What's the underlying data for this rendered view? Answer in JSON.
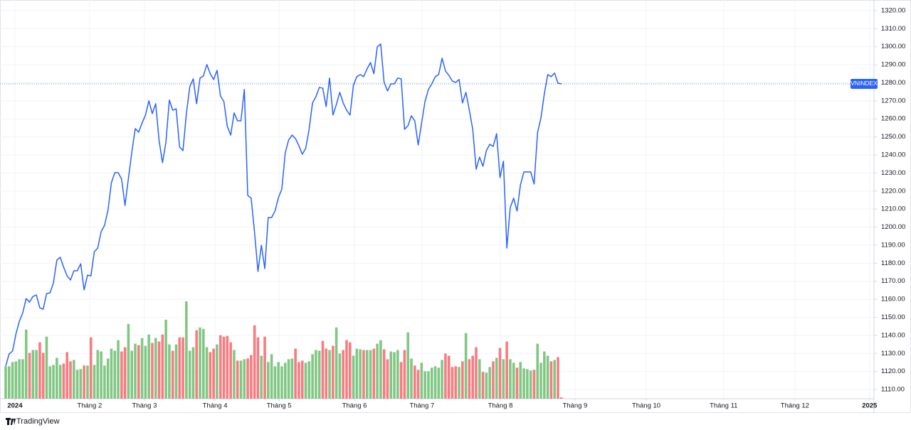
{
  "brand": "TradingView",
  "chart_data": {
    "type": "line",
    "series": [
      {
        "name": "VNINDEX",
        "color": "#2962ff",
        "values": [
          1123,
          1129.7,
          1131.3,
          1140.7,
          1147.8,
          1152.5,
          1160.4,
          1158.5,
          1161.6,
          1162.4,
          1155.3,
          1154.5,
          1163.2,
          1163.6,
          1169.1,
          1181.7,
          1183.3,
          1177.8,
          1173,
          1170.7,
          1175.8,
          1175.8,
          1179.7,
          1165.2,
          1173.4,
          1173,
          1186.4,
          1188.4,
          1197.5,
          1201,
          1209.3,
          1224.6,
          1230.2,
          1230.2,
          1226.6,
          1212,
          1227,
          1241.6,
          1254.6,
          1252.6,
          1257.7,
          1262.1,
          1270,
          1262.9,
          1268.4,
          1247.9,
          1235.7,
          1247.1,
          1270.4,
          1264.8,
          1265.6,
          1244.4,
          1242.4,
          1262.9,
          1277.8,
          1282.2,
          1268.4,
          1282.6,
          1283.8,
          1290.1,
          1285,
          1281.8,
          1286.9,
          1272.7,
          1269.6,
          1255.8,
          1251,
          1263.3,
          1258.9,
          1258.9,
          1276.3,
          1217.6,
          1216,
          1197.1,
          1175.4,
          1190,
          1177,
          1205.3,
          1205.3,
          1208.9,
          1216.4,
          1221.1,
          1241.2,
          1248.3,
          1251,
          1249.1,
          1245.1,
          1240.4,
          1243.6,
          1254.2,
          1268.8,
          1272.3,
          1277.4,
          1277,
          1266.8,
          1282.6,
          1262.1,
          1268,
          1274.7,
          1268.8,
          1264.8,
          1262.1,
          1278.6,
          1283.4,
          1284.5,
          1283.4,
          1287.7,
          1291.2,
          1285,
          1299.9,
          1301.5,
          1280.2,
          1275.5,
          1279.4,
          1279.4,
          1282.6,
          1282.2,
          1254.2,
          1256.2,
          1261.7,
          1258.9,
          1245.5,
          1257.7,
          1269.6,
          1276.3,
          1279.4,
          1283.4,
          1284.5,
          1293.6,
          1286.5,
          1284.1,
          1281,
          1280.2,
          1281.8,
          1268.8,
          1274.7,
          1264.8,
          1254.2,
          1232.1,
          1238.8,
          1233.7,
          1242.4,
          1245.9,
          1244.7,
          1251.8,
          1227.4,
          1236.5,
          1188.4,
          1210.9,
          1216,
          1208.9,
          1223.5,
          1230.6,
          1230.6,
          1230.6,
          1223.9,
          1252.2,
          1260.5,
          1273.9,
          1284.5,
          1283.4,
          1285.4,
          1279.8,
          1279.4
        ]
      },
      {
        "type": "bar",
        "axis": "y2",
        "up_color": "#81c784",
        "down_color": "#f77c80",
        "values": [
          46,
          46,
          52,
          53,
          56,
          56,
          98,
          65,
          69,
          69,
          80,
          65,
          88,
          46,
          48,
          58,
          48,
          50,
          66,
          53,
          55,
          41,
          42,
          47,
          47,
          87,
          48,
          69,
          67,
          47,
          57,
          71,
          68,
          83,
          67,
          73,
          106,
          68,
          78,
          76,
          86,
          75,
          91,
          79,
          86,
          81,
          91,
          112,
          77,
          68,
          77,
          87,
          87,
          138,
          68,
          73,
          97,
          101,
          99,
          73,
          66,
          71,
          77,
          90,
          88,
          89,
          80,
          69,
          54,
          54,
          56,
          57,
          62,
          104,
          87,
          61,
          88,
          52,
          63,
          46,
          52,
          46,
          51,
          56,
          57,
          71,
          52,
          54,
          51,
          53,
          63,
          69,
          68,
          82,
          71,
          69,
          75,
          101,
          64,
          69,
          83,
          80,
          61,
          71,
          70,
          69,
          69,
          69,
          71,
          78,
          83,
          70,
          56,
          67,
          66,
          69,
          52,
          69,
          94,
          57,
          47,
          41,
          51,
          39,
          39,
          44,
          46,
          44,
          55,
          64,
          61,
          45,
          46,
          45,
          53,
          93,
          56,
          61,
          73,
          56,
          38,
          37,
          45,
          53,
          58,
          72,
          56,
          81,
          56,
          51,
          44,
          52,
          43,
          42,
          40,
          41,
          78,
          51,
          67,
          61,
          53,
          55,
          59,
          2
        ]
      }
    ],
    "xlim": [
      -1.67,
      254.7
    ],
    "xticks": [
      {
        "value": 2.7,
        "label": "2024"
      },
      {
        "value": 24.6,
        "label": "Tháng 2"
      },
      {
        "value": 40.7,
        "label": "Tháng 3"
      },
      {
        "value": 61.4,
        "label": "Tháng 4"
      },
      {
        "value": 80.2,
        "label": "Tháng 5"
      },
      {
        "value": 102.3,
        "label": "Tháng 6"
      },
      {
        "value": 122.1,
        "label": "Tháng 7"
      },
      {
        "value": 145.1,
        "label": "Tháng 8"
      },
      {
        "value": 167,
        "label": "Tháng 9"
      },
      {
        "value": 187.9,
        "label": "Tháng 10"
      },
      {
        "value": 210.6,
        "label": "Tháng 11"
      },
      {
        "value": 231.5,
        "label": "Tháng 12"
      },
      {
        "value": 253.4,
        "label": "2025"
      }
    ],
    "ylim": [
      1104.9,
      1323.9
    ],
    "yticks": [
      {
        "value": 1110,
        "label": "1110.00"
      },
      {
        "value": 1120,
        "label": "1120.00"
      },
      {
        "value": 1130,
        "label": "1130.00"
      },
      {
        "value": 1140,
        "label": "1140.00"
      },
      {
        "value": 1150,
        "label": "1150.00"
      },
      {
        "value": 1160,
        "label": "1160.00"
      },
      {
        "value": 1170,
        "label": "1170.00"
      },
      {
        "value": 1180,
        "label": "1180.00"
      },
      {
        "value": 1190,
        "label": "1190.00"
      },
      {
        "value": 1200,
        "label": "1200.00"
      },
      {
        "value": 1210,
        "label": "1210.00"
      },
      {
        "value": 1220,
        "label": "1220.00"
      },
      {
        "value": 1230,
        "label": "1230.00"
      },
      {
        "value": 1240,
        "label": "1240.00"
      },
      {
        "value": 1250,
        "label": "1250.00"
      },
      {
        "value": 1260,
        "label": "1260.00"
      },
      {
        "value": 1270,
        "label": "1270.00"
      },
      {
        "value": 1280,
        "label": "1280.00"
      },
      {
        "value": 1290,
        "label": "1290.00"
      },
      {
        "value": 1300,
        "label": "1300.00"
      },
      {
        "value": 1310,
        "label": "1310.00"
      },
      {
        "value": 1320,
        "label": "1320.00"
      }
    ],
    "y2lim": [
      0,
      560
    ],
    "grid": true
  }
}
